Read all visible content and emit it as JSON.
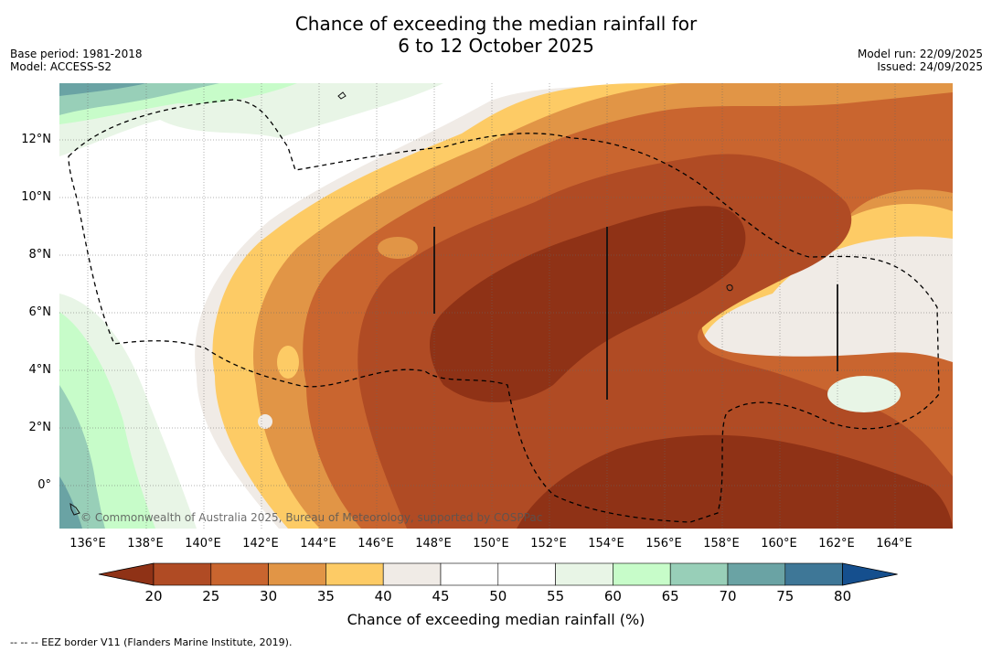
{
  "header": {
    "title_line1": "Chance of exceeding the median rainfall for",
    "title_line2": "6 to 12 October 2025",
    "base_period": "Base period: 1981-2018",
    "model": "Model: ACCESS-S2",
    "model_run": "Model run: 22/09/2025",
    "issued": "Issued: 24/09/2025"
  },
  "map": {
    "lat_labels": [
      "12°N",
      "10°N",
      "8°N",
      "6°N",
      "4°N",
      "2°N",
      "0°"
    ],
    "lon_labels": [
      "136°E",
      "138°E",
      "140°E",
      "142°E",
      "144°E",
      "146°E",
      "148°E",
      "150°E",
      "152°E",
      "154°E",
      "156°E",
      "158°E",
      "160°E",
      "162°E",
      "164°E"
    ],
    "copyright": "© Commonwealth of Australia 2025, Bureau of Meteorology, supported by COSPPac"
  },
  "colorbar": {
    "label": "Chance of exceeding median rainfall (%)",
    "ticks": [
      "20",
      "25",
      "30",
      "35",
      "40",
      "45",
      "50",
      "55",
      "60",
      "65",
      "70",
      "75",
      "80"
    ],
    "colors": [
      "#8f3216",
      "#b04b24",
      "#c9652f",
      "#e19546",
      "#fdcb65",
      "#f0ebe6",
      "#ffffff",
      "#ffffff",
      "#e8f5e6",
      "#c7fcc9",
      "#98cfb8",
      "#6aa3a4",
      "#3e7797",
      "#154f8e"
    ]
  },
  "footer": {
    "eez_note": "--  --  -- EEZ border V11 (Flanders Marine Institute, 2019)."
  }
}
